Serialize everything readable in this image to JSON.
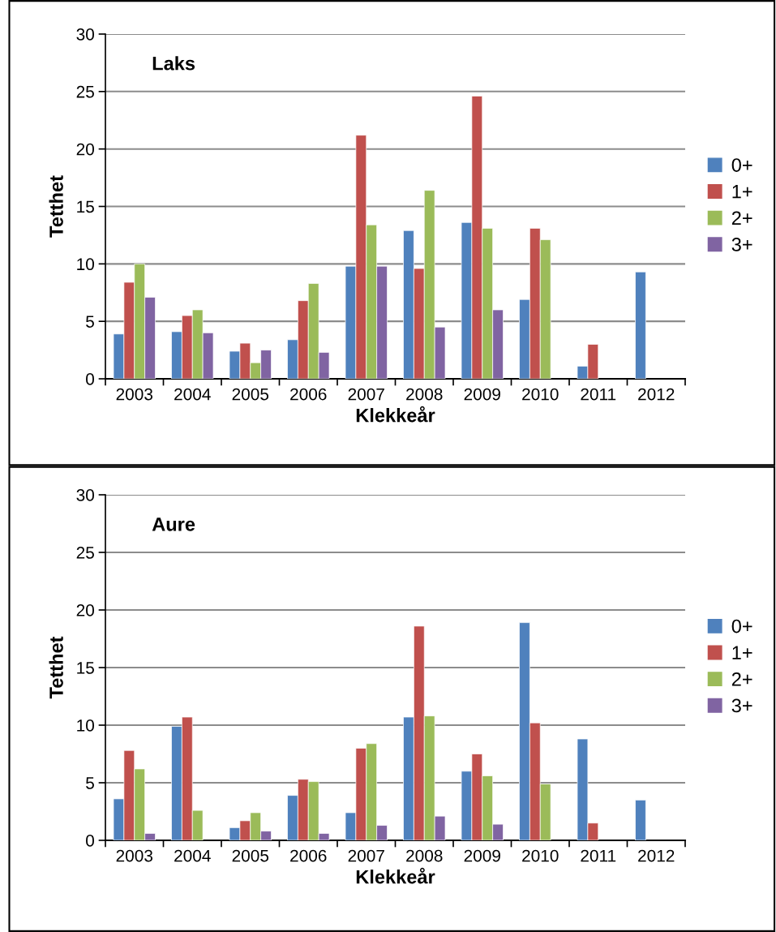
{
  "chart_data": [
    {
      "type": "bar",
      "annotations": [
        "Laks"
      ],
      "xlabel": "Klekkeår",
      "ylabel": "Tetthet",
      "categories": [
        "2003",
        "2004",
        "2005",
        "2006",
        "2007",
        "2008",
        "2009",
        "2010",
        "2011",
        "2012"
      ],
      "series": [
        {
          "name": "0+",
          "color": "#4f81bd",
          "values": [
            3.9,
            4.1,
            2.4,
            3.4,
            9.8,
            12.9,
            13.6,
            6.9,
            1.1,
            9.3
          ]
        },
        {
          "name": "1+",
          "color": "#c0504d",
          "values": [
            8.4,
            5.5,
            3.1,
            6.8,
            21.2,
            9.6,
            24.6,
            13.1,
            3.0,
            null
          ]
        },
        {
          "name": "2+",
          "color": "#9bbb59",
          "values": [
            10.0,
            6.0,
            1.4,
            8.3,
            13.4,
            16.4,
            13.1,
            12.1,
            null,
            null
          ]
        },
        {
          "name": "3+",
          "color": "#8064a2",
          "values": [
            7.1,
            4.0,
            2.5,
            2.3,
            9.8,
            4.5,
            6.0,
            null,
            null,
            null
          ]
        }
      ],
      "ylim": [
        0,
        30
      ],
      "yticks": [
        0,
        5,
        10,
        15,
        20,
        25,
        30
      ],
      "grid": "y",
      "legend": "right"
    },
    {
      "type": "bar",
      "annotations": [
        "Aure"
      ],
      "xlabel": "Klekkeår",
      "ylabel": "Tetthet",
      "categories": [
        "2003",
        "2004",
        "2005",
        "2006",
        "2007",
        "2008",
        "2009",
        "2010",
        "2011",
        "2012"
      ],
      "series": [
        {
          "name": "0+",
          "color": "#4f81bd",
          "values": [
            3.6,
            9.9,
            1.1,
            3.9,
            2.4,
            10.7,
            6.0,
            18.9,
            8.8,
            3.5
          ]
        },
        {
          "name": "1+",
          "color": "#c0504d",
          "values": [
            7.8,
            10.7,
            1.7,
            5.3,
            8.0,
            18.6,
            7.5,
            10.2,
            1.5,
            null
          ]
        },
        {
          "name": "2+",
          "color": "#9bbb59",
          "values": [
            6.2,
            2.6,
            2.4,
            5.1,
            8.4,
            10.8,
            5.6,
            4.9,
            null,
            null
          ]
        },
        {
          "name": "3+",
          "color": "#8064a2",
          "values": [
            0.6,
            null,
            0.8,
            0.6,
            1.3,
            2.1,
            1.4,
            null,
            null,
            null
          ]
        }
      ],
      "ylim": [
        0,
        30
      ],
      "yticks": [
        0,
        5,
        10,
        15,
        20,
        25,
        30
      ],
      "grid": "y",
      "legend": "right"
    }
  ]
}
